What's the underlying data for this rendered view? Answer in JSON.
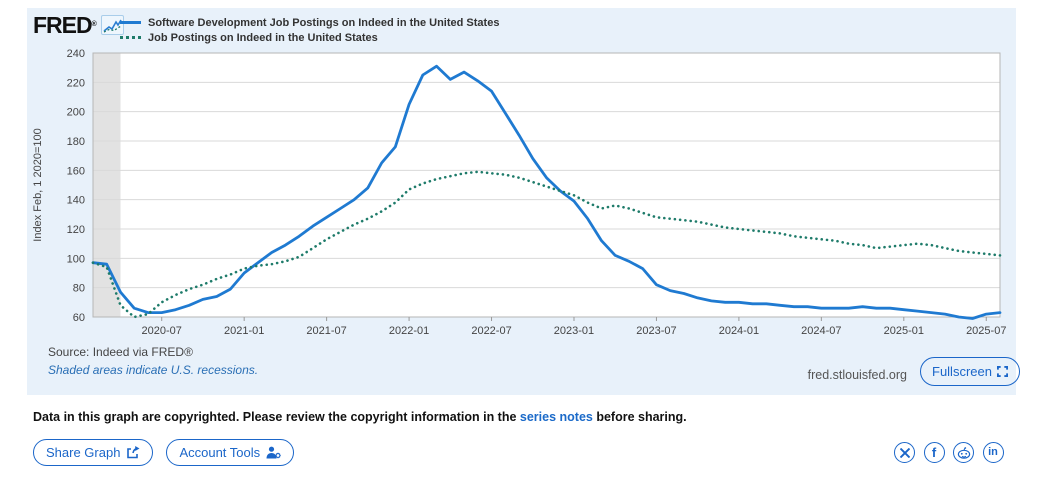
{
  "header": {
    "logo_text": "FRED",
    "logo_reg": "®",
    "legend": [
      {
        "label": "Software Development Job Postings on Indeed in the United States",
        "color": "#1f7ad1",
        "style": "solid"
      },
      {
        "label": "Job Postings on Indeed in the United States",
        "color": "#1e7b6a",
        "style": "dotted"
      }
    ]
  },
  "chart_data": {
    "type": "line",
    "ylabel": "Index Feb, 1 2020=100",
    "ylim": [
      60,
      240
    ],
    "yticks": [
      60,
      80,
      100,
      120,
      140,
      160,
      180,
      200,
      220,
      240
    ],
    "x_months": {
      "start": "2020-02",
      "end": "2025-08",
      "step_months": 1
    },
    "xticks": [
      {
        "index": 5,
        "label": "2020-07"
      },
      {
        "index": 11,
        "label": "2021-01"
      },
      {
        "index": 17,
        "label": "2021-07"
      },
      {
        "index": 23,
        "label": "2022-01"
      },
      {
        "index": 29,
        "label": "2022-07"
      },
      {
        "index": 35,
        "label": "2023-01"
      },
      {
        "index": 41,
        "label": "2023-07"
      },
      {
        "index": 47,
        "label": "2024-01"
      },
      {
        "index": 53,
        "label": "2024-07"
      },
      {
        "index": 59,
        "label": "2025-01"
      },
      {
        "index": 65,
        "label": "2025-07"
      }
    ],
    "recession_band": {
      "start_index": 0,
      "end_index": 2,
      "note": "U.S. recession Feb-Apr 2020",
      "color": "#e2e2e2"
    },
    "series": [
      {
        "name": "Software Development Job Postings on Indeed in the United States",
        "color": "#1f7ad1",
        "style": "solid",
        "values": [
          97,
          96,
          77,
          66,
          63,
          63,
          65,
          68,
          72,
          74,
          79,
          90,
          97,
          104,
          109,
          115,
          122,
          128,
          134,
          140,
          148,
          165,
          176,
          205,
          225,
          231,
          222,
          227,
          221,
          214,
          199,
          184,
          168,
          155,
          146,
          139,
          127,
          112,
          102,
          98,
          93,
          82,
          78,
          76,
          73,
          71,
          70,
          70,
          69,
          69,
          68,
          67,
          67,
          66,
          66,
          66,
          67,
          66,
          66,
          65,
          64,
          63,
          62,
          60,
          59,
          62,
          63
        ]
      },
      {
        "name": "Job Postings on Indeed in the United States",
        "color": "#1e7b6a",
        "style": "dotted",
        "values": [
          97,
          94,
          68,
          60,
          62,
          70,
          75,
          79,
          82,
          86,
          89,
          93,
          95,
          96,
          98,
          101,
          107,
          113,
          118,
          123,
          127,
          132,
          138,
          147,
          151,
          154,
          156,
          158,
          159,
          158,
          157,
          155,
          152,
          149,
          146,
          143,
          138,
          134,
          136,
          134,
          131,
          128,
          127,
          126,
          125,
          123,
          121,
          120,
          119,
          118,
          117,
          115,
          114,
          113,
          112,
          110,
          109,
          107,
          108,
          109,
          110,
          109,
          107,
          105,
          104,
          103,
          102
        ]
      }
    ]
  },
  "footer": {
    "source": "Source: Indeed via FRED®",
    "shaded_note": "Shaded areas indicate U.S. recessions.",
    "site": "fred.stlouisfed.org",
    "fullscreen_label": "Fullscreen"
  },
  "copyright": {
    "prefix": "Data in this graph are copyrighted. Please review the copyright information in the ",
    "link": "series notes",
    "suffix": " before sharing."
  },
  "actions": {
    "share_label": "Share Graph",
    "account_label": "Account Tools"
  },
  "social": {
    "icons": [
      "x-twitter",
      "facebook",
      "reddit",
      "linkedin"
    ]
  }
}
